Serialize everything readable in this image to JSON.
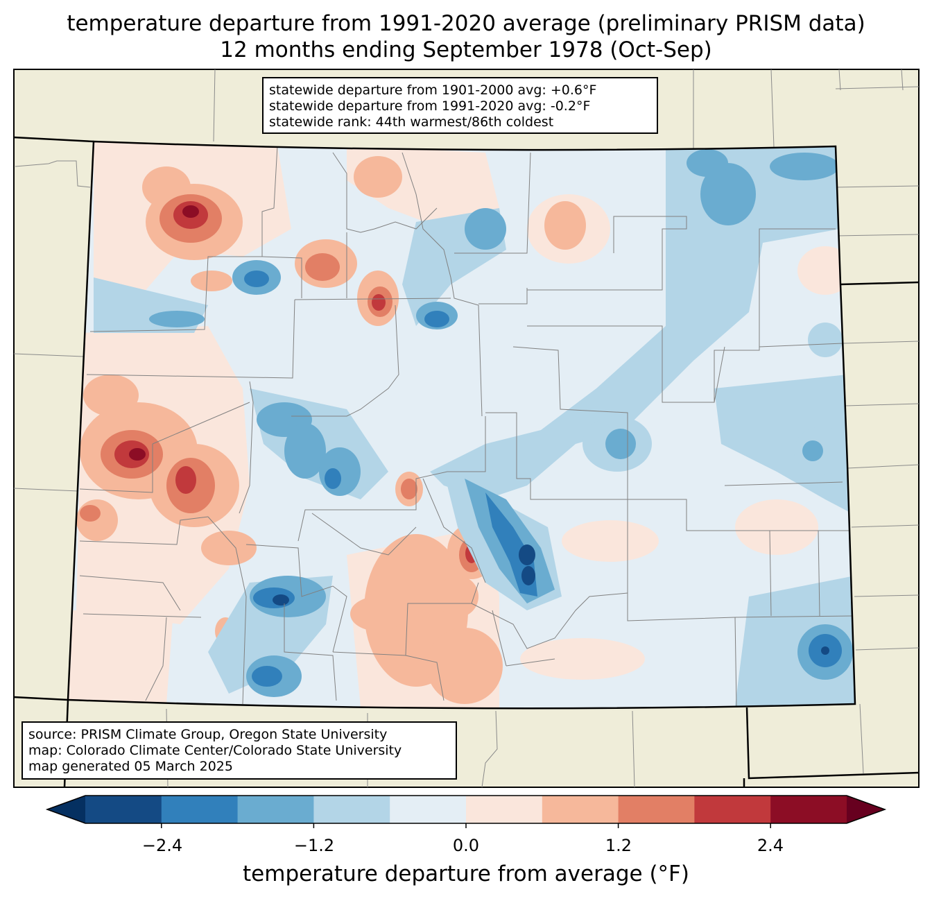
{
  "title": {
    "line1": "temperature departure from 1991-2020 average (preliminary PRISM data)",
    "line2": "12 months ending September 1978 (Oct-Sep)"
  },
  "stats": {
    "line1": "statewide departure from 1901-2000 avg: +0.6°F",
    "line2": "statewide departure from 1991-2020 avg: -0.2°F",
    "line3": "statewide rank: 44th warmest/86th coldest"
  },
  "source": {
    "line1": "source: PRISM Climate Group, Oregon State University",
    "line2": "map: Colorado Climate Center/Colorado State University",
    "line3": "map generated 05 March 2025"
  },
  "colorbar": {
    "label": "temperature departure from average (°F)",
    "ticks": [
      "−2.4",
      "−1.2",
      "0.0",
      "1.2",
      "2.4"
    ],
    "bounds": [
      -3.0,
      -2.4,
      -1.8,
      -1.2,
      -0.6,
      0.0,
      0.6,
      1.2,
      1.8,
      2.4,
      3.0
    ],
    "under_color": "#053061",
    "over_color": "#67001f",
    "colors": [
      "#144a84",
      "#3180bb",
      "#6aacd0",
      "#b3d5e7",
      "#e4eef5",
      "#fae6dc",
      "#f6b89b",
      "#e27f65",
      "#c1393c",
      "#8c0d25"
    ]
  },
  "colors": {
    "land": "#efedd9",
    "state_border": "#000000",
    "county_border": "#808080"
  }
}
